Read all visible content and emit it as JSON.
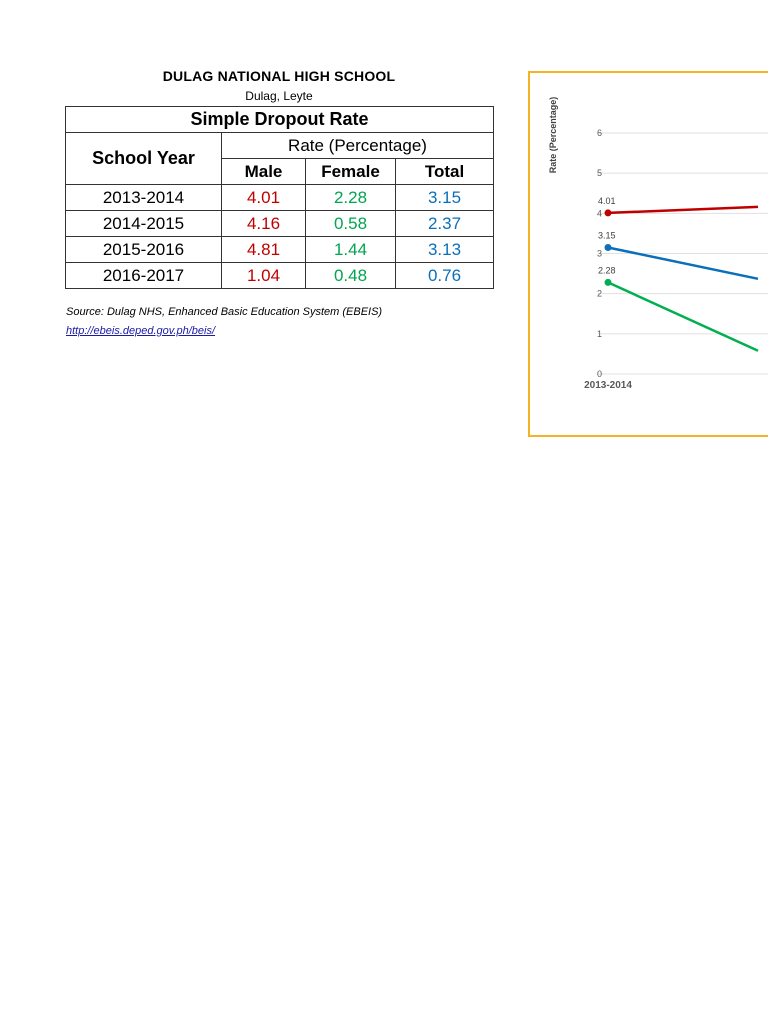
{
  "header": {
    "school": "DULAG NATIONAL HIGH SCHOOL",
    "location": "Dulag, Leyte"
  },
  "table": {
    "title": "Simple Dropout Rate",
    "year_header": "School Year",
    "rate_header": "Rate (Percentage)",
    "columns": [
      "Male",
      "Female",
      "Total"
    ],
    "rows": [
      {
        "year": "2013-2014",
        "male": "4.01",
        "female": "2.28",
        "total": "3.15"
      },
      {
        "year": "2014-2015",
        "male": "4.16",
        "female": "0.58",
        "total": "2.37"
      },
      {
        "year": "2015-2016",
        "male": "4.81",
        "female": "1.44",
        "total": "3.13"
      },
      {
        "year": "2016-2017",
        "male": "1.04",
        "female": "0.48",
        "total": "0.76"
      }
    ]
  },
  "source": {
    "text": "Source: Dulag NHS, Enhanced Basic Education System (EBEIS)",
    "link": "http://ebeis.deped.gov.ph/beis/"
  },
  "colors": {
    "male": "#c00000",
    "female": "#00b050",
    "total": "#0b6fba",
    "chart_border": "#f5b323",
    "grid": "#e0e0e0"
  },
  "chart_data": {
    "type": "line",
    "ylabel": "Rate (Percentage)",
    "xlabel": "",
    "ylim": [
      0,
      6
    ],
    "yticks": [
      0,
      1,
      2,
      3,
      4,
      5,
      6
    ],
    "categories": [
      "2013-2014"
    ],
    "grid": true,
    "series": [
      {
        "key": "male",
        "values": [
          4.01
        ],
        "labels": [
          "4.01"
        ]
      },
      {
        "key": "total",
        "values": [
          3.15
        ],
        "labels": [
          "3.15"
        ]
      },
      {
        "key": "female",
        "values": [
          2.28
        ],
        "labels": [
          "2.28"
        ]
      }
    ]
  }
}
